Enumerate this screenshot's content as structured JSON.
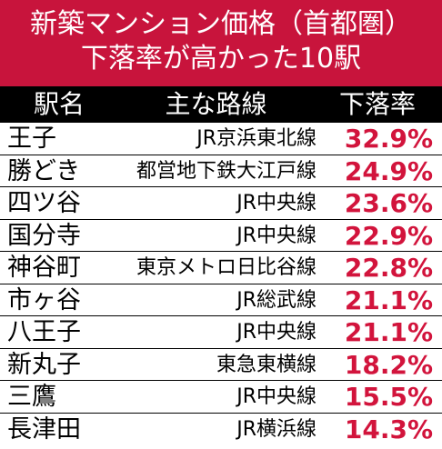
{
  "title": {
    "line1": "新築マンション価格（首都圏）",
    "line2": "下落率が高かった10駅"
  },
  "headers": {
    "station": "駅名",
    "line": "主な路線",
    "rate": "下落率"
  },
  "colors": {
    "title_bg": "#c8143c",
    "header_bg": "#000000",
    "rate_text": "#d2143c"
  },
  "rows": [
    {
      "station": "王子",
      "line": "JR京浜東北線",
      "rate": "32.9%"
    },
    {
      "station": "勝どき",
      "line": "都営地下鉄大江戸線",
      "rate": "24.9%"
    },
    {
      "station": "四ツ谷",
      "line": "JR中央線",
      "rate": "23.6%"
    },
    {
      "station": "国分寺",
      "line": "JR中央線",
      "rate": "22.9%"
    },
    {
      "station": "神谷町",
      "line": "東京メトロ日比谷線",
      "rate": "22.8%"
    },
    {
      "station": "市ヶ谷",
      "line": "JR総武線",
      "rate": "21.1%"
    },
    {
      "station": "八王子",
      "line": "JR中央線",
      "rate": "21.1%"
    },
    {
      "station": "新丸子",
      "line": "東急東横線",
      "rate": "18.2%"
    },
    {
      "station": "三鷹",
      "line": "JR中央線",
      "rate": "15.5%"
    },
    {
      "station": "長津田",
      "line": "JR横浜線",
      "rate": "14.3%"
    }
  ]
}
